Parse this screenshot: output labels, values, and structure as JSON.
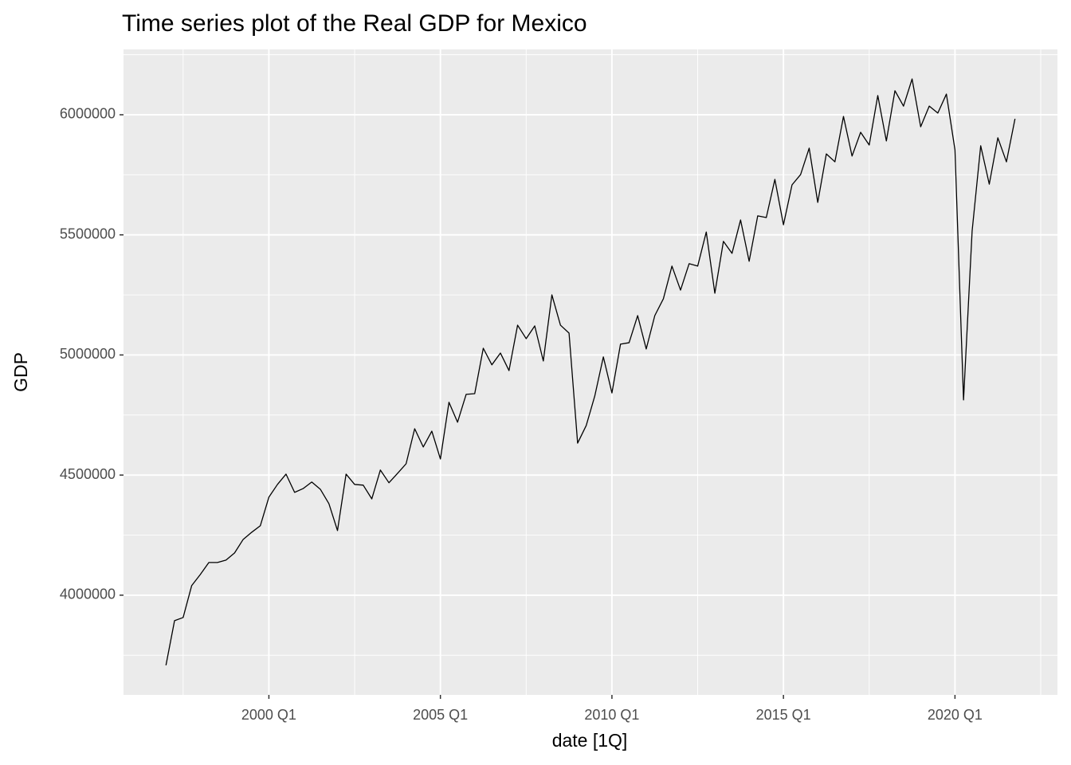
{
  "chart_data": {
    "type": "line",
    "title": "Time series plot of the Real GDP for Mexico",
    "x_label": "date [1Q]",
    "y_label": "GDP",
    "x": [
      "1997 Q1",
      "1997 Q2",
      "1997 Q3",
      "1997 Q4",
      "1998 Q1",
      "1998 Q2",
      "1998 Q3",
      "1998 Q4",
      "1999 Q1",
      "1999 Q2",
      "1999 Q3",
      "1999 Q4",
      "2000 Q1",
      "2000 Q2",
      "2000 Q3",
      "2000 Q4",
      "2001 Q1",
      "2001 Q2",
      "2001 Q3",
      "2001 Q4",
      "2002 Q1",
      "2002 Q2",
      "2002 Q3",
      "2002 Q4",
      "2003 Q1",
      "2003 Q2",
      "2003 Q3",
      "2003 Q4",
      "2004 Q1",
      "2004 Q2",
      "2004 Q3",
      "2004 Q4",
      "2005 Q1",
      "2005 Q2",
      "2005 Q3",
      "2005 Q4",
      "2006 Q1",
      "2006 Q2",
      "2006 Q3",
      "2006 Q4",
      "2007 Q1",
      "2007 Q2",
      "2007 Q3",
      "2007 Q4",
      "2008 Q1",
      "2008 Q2",
      "2008 Q3",
      "2008 Q4",
      "2009 Q1",
      "2009 Q2",
      "2009 Q3",
      "2009 Q4",
      "2010 Q1",
      "2010 Q2",
      "2010 Q3",
      "2010 Q4",
      "2011 Q1",
      "2011 Q2",
      "2011 Q3",
      "2011 Q4",
      "2012 Q1",
      "2012 Q2",
      "2012 Q3",
      "2012 Q4",
      "2013 Q1",
      "2013 Q2",
      "2013 Q3",
      "2013 Q4",
      "2014 Q1",
      "2014 Q2",
      "2014 Q3",
      "2014 Q4",
      "2015 Q1",
      "2015 Q2",
      "2015 Q3",
      "2015 Q4",
      "2016 Q1",
      "2016 Q2",
      "2016 Q3",
      "2016 Q4",
      "2017 Q1",
      "2017 Q2",
      "2017 Q3",
      "2017 Q4",
      "2018 Q1",
      "2018 Q2",
      "2018 Q3",
      "2018 Q4",
      "2019 Q1",
      "2019 Q2",
      "2019 Q3",
      "2019 Q4",
      "2020 Q1",
      "2020 Q2",
      "2020 Q3",
      "2020 Q4",
      "2021 Q1",
      "2021 Q2",
      "2021 Q3",
      "2021 Q4"
    ],
    "values": [
      3708000,
      3894000,
      3907000,
      4040000,
      4086000,
      4136000,
      4136000,
      4146000,
      4176000,
      4232000,
      4262000,
      4289000,
      4408000,
      4461000,
      4504000,
      4428000,
      4444000,
      4471000,
      4441000,
      4381000,
      4269000,
      4504000,
      4461000,
      4458000,
      4401000,
      4521000,
      4468000,
      4507000,
      4547000,
      4693000,
      4617000,
      4683000,
      4567000,
      4803000,
      4720000,
      4836000,
      4839000,
      5028000,
      4959000,
      5008000,
      4935000,
      5124000,
      5068000,
      5121000,
      4975000,
      5250000,
      5124000,
      5091000,
      4633000,
      4706000,
      4829000,
      4992000,
      4842000,
      5045000,
      5051000,
      5164000,
      5025000,
      5164000,
      5234000,
      5370000,
      5270000,
      5380000,
      5370000,
      5512000,
      5257000,
      5473000,
      5423000,
      5562000,
      5390000,
      5579000,
      5572000,
      5731000,
      5542000,
      5708000,
      5751000,
      5861000,
      5635000,
      5837000,
      5804000,
      5993000,
      5828000,
      5927000,
      5874000,
      6080000,
      5891000,
      6100000,
      6036000,
      6149000,
      5950000,
      6036000,
      6007000,
      6086000,
      5854000,
      4813000,
      5516000,
      5871000,
      5711000,
      5904000,
      5804000,
      5983000
    ],
    "color": "#000000",
    "xticks": [
      "2000 Q1",
      "2005 Q1",
      "2010 Q1",
      "2015 Q1",
      "2020 Q1"
    ],
    "ylim": [
      3585000,
      6272000
    ],
    "yticks": [
      4000000,
      4500000,
      5000000,
      5500000,
      6000000
    ],
    "grid": true
  }
}
